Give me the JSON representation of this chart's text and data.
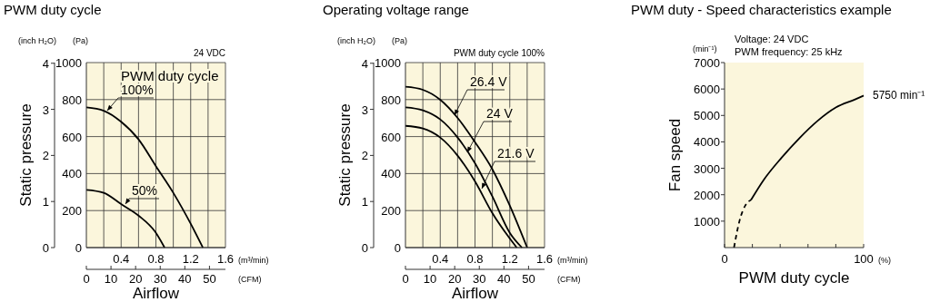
{
  "chart_data": [
    {
      "type": "line",
      "title": "PWM duty cycle",
      "xlabel": "Airflow",
      "y2label": "Static pressure",
      "legend": "top",
      "legend_title": "PWM duty cycle",
      "xlim": [
        0,
        1.6
      ],
      "xticks": [
        {
          "value": 0.2,
          "label": null
        },
        0.4,
        {
          "value": 0.6,
          "label": null
        },
        0.8,
        {
          "value": 1.0,
          "label": null
        },
        1.2,
        {
          "value": 1.4,
          "label": null
        },
        1.6
      ],
      "ylim": [
        0,
        1000
      ],
      "yticks": [
        0,
        200,
        400,
        600,
        800,
        1000
      ],
      "y2lim": [
        0,
        4.015
      ],
      "y2ticks": [
        0,
        1,
        2,
        3,
        4
      ],
      "x2lim": [
        0,
        56.5
      ],
      "x2ticks": [
        0,
        10,
        20,
        30,
        40,
        50
      ],
      "grid": true,
      "annotations": [
        "(inch H₂O)",
        "(Pa)",
        "24 VDC",
        "(m³/min)",
        "(CFM)"
      ],
      "series": [
        {
          "name": "100%",
          "color": "#000000",
          "x": [
            0,
            0.2,
            0.4,
            0.6,
            0.8,
            1.0,
            1.2,
            1.34
          ],
          "values": [
            758,
            740,
            680,
            585,
            440,
            296,
            129,
            0
          ]
        },
        {
          "name": "50%",
          "color": "#000000",
          "x": [
            0,
            0.2,
            0.4,
            0.6,
            0.8,
            0.9
          ],
          "values": [
            312,
            296,
            235,
            173,
            80,
            0
          ]
        }
      ]
    },
    {
      "type": "line",
      "title": "Operating voltage range",
      "xlabel": "Airflow",
      "y2label": "Static pressure",
      "legend": "top",
      "xlim": [
        0,
        1.6
      ],
      "xticks": [
        {
          "value": 0.2,
          "label": null
        },
        0.4,
        {
          "value": 0.6,
          "label": null
        },
        0.8,
        {
          "value": 1.0,
          "label": null
        },
        1.2,
        {
          "value": 1.4,
          "label": null
        },
        1.6
      ],
      "ylim": [
        0,
        1000
      ],
      "yticks": [
        0,
        200,
        400,
        600,
        800,
        1000
      ],
      "y2lim": [
        0,
        4.015
      ],
      "y2ticks": [
        0,
        1,
        2,
        3,
        4
      ],
      "x2lim": [
        0,
        56.5
      ],
      "x2ticks": [
        0,
        10,
        20,
        30,
        40,
        50
      ],
      "grid": true,
      "annotations": [
        "(inch H₂O)",
        "(Pa)",
        "PWM duty cycle 100%",
        "(m³/min)",
        "(CFM)"
      ],
      "series": [
        {
          "name": "26.4 V",
          "color": "#000000",
          "x": [
            0,
            0.2,
            0.4,
            0.6,
            0.8,
            1.0,
            1.2,
            1.4
          ],
          "values": [
            869,
            853,
            799,
            701,
            570,
            423,
            227,
            0
          ]
        },
        {
          "name": "24 V",
          "color": "#000000",
          "x": [
            0,
            0.2,
            0.4,
            0.6,
            0.8,
            1.0,
            1.2,
            1.34
          ],
          "values": [
            758,
            742,
            693,
            595,
            456,
            276,
            80,
            0
          ]
        },
        {
          "name": "21.6 V",
          "color": "#000000",
          "x": [
            0,
            0.2,
            0.4,
            0.6,
            0.8,
            1.0,
            1.28
          ],
          "values": [
            658,
            644,
            595,
            497,
            358,
            186,
            0
          ]
        }
      ]
    },
    {
      "type": "line",
      "title": "PWM duty - Speed characteristics example",
      "xlabel": "PWM duty cycle",
      "ylabel": "Fan speed",
      "xlim": [
        0,
        100
      ],
      "xticks": [
        0,
        {
          "value": 20,
          "label": null
        },
        {
          "value": 40,
          "label": null
        },
        {
          "value": 60,
          "label": null
        },
        {
          "value": 80,
          "label": null
        },
        100
      ],
      "ylim": [
        0,
        7000
      ],
      "yticks": [
        1000,
        2000,
        3000,
        4000,
        5000,
        6000,
        7000
      ],
      "grid": false,
      "annotations": [
        "Voltage: 24 VDC",
        "PWM frequency: 25 kHz",
        "(min⁻¹)",
        {
          "text": "5750 min⁻¹",
          "x": 100,
          "y": 5750
        },
        "(%)"
      ],
      "series": [
        {
          "color": "#000000",
          "x": [
            19,
            28,
            41,
            54,
            67,
            80,
            93.5,
            100
          ],
          "values": [
            1800,
            2550,
            3400,
            4150,
            4800,
            5300,
            5600,
            5750
          ]
        },
        {
          "color": "#000000",
          "line_style": "dashed",
          "x": [
            6.8,
            10.7,
            15,
            19
          ],
          "values": [
            0,
            1000,
            1600,
            1800
          ]
        }
      ]
    }
  ]
}
